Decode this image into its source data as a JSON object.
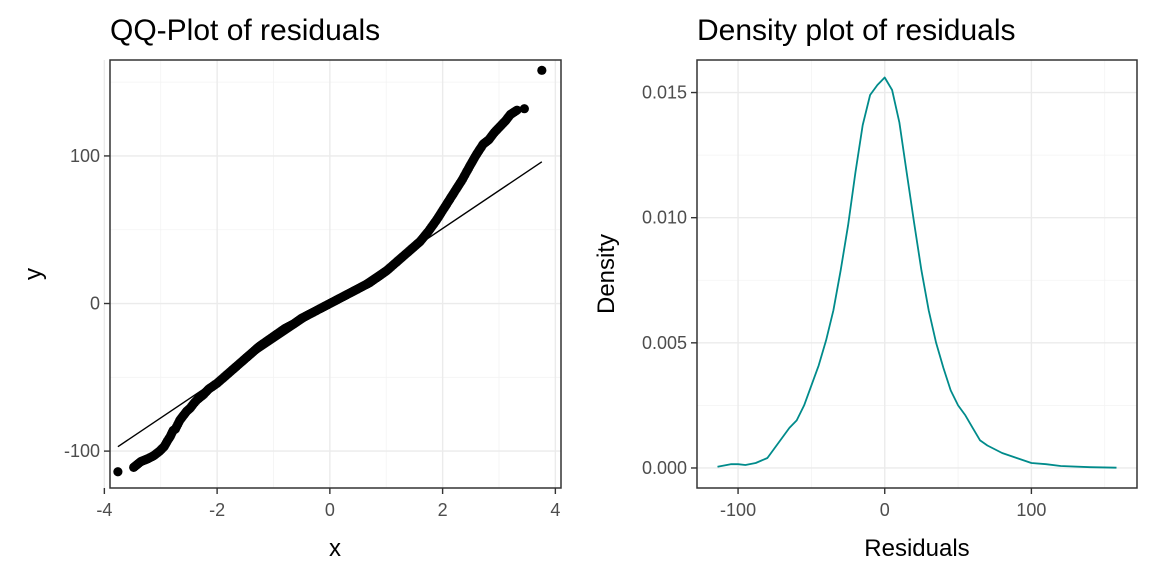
{
  "chart_data": [
    {
      "type": "scatter",
      "title": "QQ-Plot of residuals",
      "xlabel": "x",
      "ylabel": "y",
      "xlim": [
        -3.9,
        4.1
      ],
      "ylim": [
        -125,
        165
      ],
      "grid": true,
      "x_ticks": [
        -4,
        -2,
        0,
        2,
        4
      ],
      "x_tick_labels": [
        "-4",
        "-2",
        "0",
        "2",
        "4"
      ],
      "y_ticks": [
        -100,
        0,
        100
      ],
      "y_tick_labels": [
        "-100",
        "0",
        "100"
      ],
      "point_color": "#000000",
      "points": {
        "x": [
          -3.76,
          -3.48,
          -3.35,
          -3.22,
          -3.12,
          -3.02,
          -2.94,
          -2.88,
          -2.83,
          -2.78,
          -2.74,
          -2.7,
          -2.66,
          -2.62,
          -2.58,
          -2.54,
          -2.48,
          -2.42,
          -2.35,
          -2.25,
          -2.15,
          -2.0,
          -1.85,
          -1.7,
          -1.55,
          -1.4,
          -1.25,
          -1.1,
          -0.95,
          -0.8,
          -0.65,
          -0.5,
          -0.35,
          -0.2,
          -0.05,
          0.1,
          0.25,
          0.4,
          0.55,
          0.7,
          0.85,
          1.0,
          1.15,
          1.3,
          1.45,
          1.6,
          1.75,
          1.9,
          2.05,
          2.2,
          2.35,
          2.48,
          2.6,
          2.72,
          2.82,
          2.92,
          3.02,
          3.12,
          3.2,
          3.32,
          3.45,
          3.76
        ],
        "y": [
          -114,
          -111,
          -107,
          -105,
          -103,
          -100,
          -97,
          -93,
          -90,
          -86,
          -85,
          -82,
          -79,
          -77,
          -75,
          -73,
          -71,
          -68,
          -65,
          -62,
          -58,
          -54,
          -49,
          -44,
          -39,
          -34,
          -29,
          -25,
          -21,
          -17,
          -14,
          -10,
          -7,
          -4,
          -1,
          2,
          5,
          8,
          11,
          14,
          18,
          22,
          27,
          32,
          37,
          42,
          49,
          57,
          66,
          75,
          84,
          93,
          101,
          108,
          111,
          116,
          120,
          124,
          128,
          131,
          132,
          158
        ]
      },
      "reference_line": {
        "x": [
          -3.76,
          3.76
        ],
        "y": [
          -97,
          96
        ]
      }
    },
    {
      "type": "line",
      "title": "Density plot of residuals",
      "xlabel": "Residuals",
      "ylabel": "Density",
      "xlim": [
        -128,
        172
      ],
      "ylim": [
        -0.0008,
        0.0163
      ],
      "grid": true,
      "x_ticks": [
        -100,
        0,
        100
      ],
      "x_tick_labels": [
        "-100",
        "0",
        "100"
      ],
      "y_ticks": [
        0,
        0.005,
        0.01,
        0.015
      ],
      "y_tick_labels": [
        "0.000",
        "0.005",
        "0.010",
        "0.015"
      ],
      "line_color": "#008b8b",
      "series": [
        {
          "x": [
            -114,
            -105,
            -100,
            -95,
            -88,
            -80,
            -75,
            -70,
            -65,
            -60,
            -55,
            -50,
            -45,
            -40,
            -35,
            -30,
            -25,
            -20,
            -15,
            -10,
            -5,
            0,
            5,
            10,
            15,
            20,
            25,
            30,
            35,
            40,
            45,
            50,
            55,
            60,
            65,
            70,
            80,
            90,
            100,
            110,
            120,
            140,
            158
          ],
          "y": [
            5e-05,
            0.00015,
            0.00015,
            0.00012,
            0.0002,
            0.0004,
            0.0008,
            0.0012,
            0.0016,
            0.0019,
            0.0025,
            0.0033,
            0.0041,
            0.0051,
            0.0063,
            0.0079,
            0.0097,
            0.0118,
            0.0137,
            0.0149,
            0.0153,
            0.0156,
            0.0151,
            0.0138,
            0.0118,
            0.0098,
            0.0079,
            0.0063,
            0.005,
            0.004,
            0.0031,
            0.0025,
            0.0021,
            0.0016,
            0.0011,
            0.0009,
            0.0006,
            0.0004,
            0.0002,
            0.00015,
            8e-05,
            3e-05,
            1e-05
          ]
        }
      ]
    }
  ]
}
